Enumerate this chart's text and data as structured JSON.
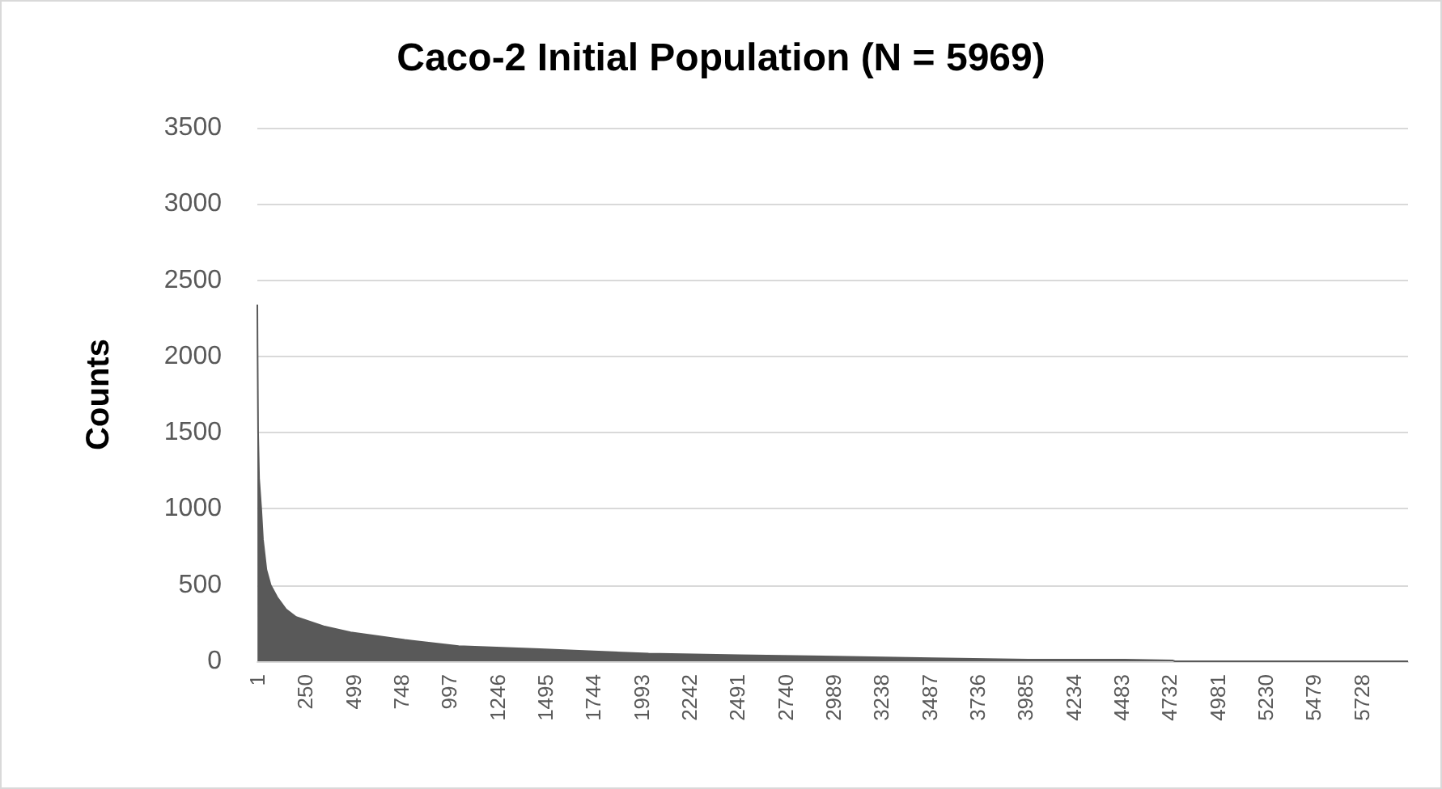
{
  "chart_data": {
    "type": "area",
    "title": "Caco-2 Initial Population (N = 5969)",
    "ylabel": "Counts",
    "x": [
      1,
      2,
      5,
      10,
      21,
      30,
      48,
      70,
      104,
      150,
      202,
      345,
      485,
      765,
      1045,
      1466,
      2030,
      2500,
      3000,
      3500,
      4000,
      4500,
      4750,
      4760,
      5969
    ],
    "series": [
      {
        "color": "#595959",
        "values": [
          2340,
          2080,
          1500,
          1200,
          1000,
          800,
          600,
          500,
          420,
          340,
          290,
          230,
          190,
          140,
          100,
          80,
          50,
          40,
          30,
          20,
          10,
          10,
          5,
          0,
          0
        ]
      }
    ],
    "xlim": [
      1,
      5969
    ],
    "xticks": [
      1,
      250,
      499,
      748,
      997,
      1246,
      1495,
      1744,
      1993,
      2242,
      2491,
      2740,
      2989,
      3238,
      3487,
      3736,
      3985,
      4234,
      4483,
      4732,
      4981,
      5230,
      5479,
      5728
    ],
    "ylim": [
      0,
      3500
    ],
    "yticks": [
      0,
      500,
      1000,
      1500,
      2000,
      2500,
      3000,
      3500
    ],
    "grid": "y"
  }
}
